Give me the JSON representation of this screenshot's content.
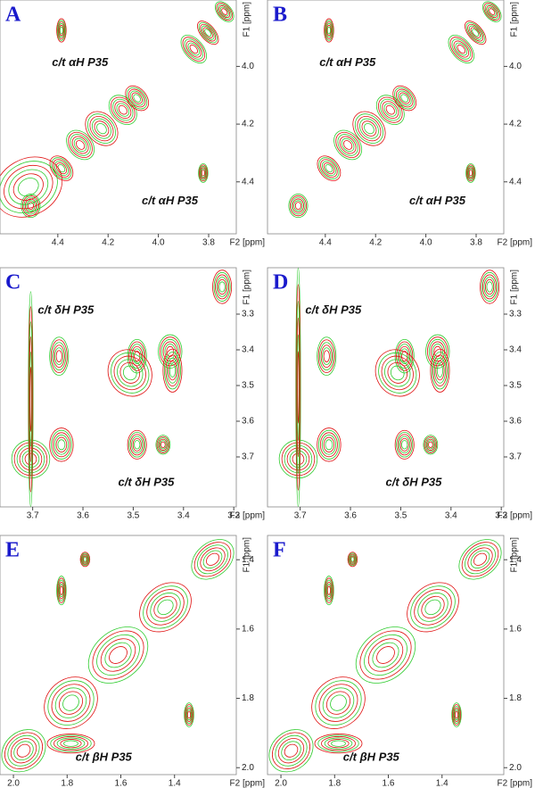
{
  "chart_data": [
    {
      "type": "contour",
      "panel_label": "A",
      "annotations": [
        "c/t αH P35",
        "c/t αH P35"
      ],
      "xlabel": "F2 [ppm]",
      "ylabel": "F1 [ppm]",
      "xlim": [
        4.63,
        3.69
      ],
      "ylim": [
        3.77,
        4.58
      ],
      "xticks": [
        4.4,
        4.2,
        {
          "value": 4,
          "label": "4.0"
        },
        3.8
      ],
      "yticks": [
        {
          "value": 4,
          "label": "4.0"
        },
        4.2,
        4.4
      ],
      "contour_colors": [
        "#2ecc2e",
        "#e01010"
      ]
    },
    {
      "type": "contour",
      "panel_label": "B",
      "annotations": [
        "c/t αH P35",
        "c/t αH P35"
      ],
      "xlabel": "F2 [ppm]",
      "ylabel": "F1 [ppm]",
      "xlim": [
        4.63,
        3.69
      ],
      "ylim": [
        3.77,
        4.58
      ],
      "xticks": [
        4.4,
        4.2,
        {
          "value": 4,
          "label": "4.0"
        },
        3.8
      ],
      "yticks": [
        {
          "value": 4,
          "label": "4.0"
        },
        4.2,
        4.4
      ],
      "contour_colors": [
        "#2ecc2e",
        "#e01010"
      ]
    },
    {
      "type": "contour",
      "panel_label": "C",
      "annotations": [
        "c/t δH P35",
        "c/t δH P35"
      ],
      "xlabel": "F2 [ppm]",
      "ylabel": "F1 [ppm]",
      "xlim": [
        3.765,
        3.295
      ],
      "ylim": [
        3.17,
        3.84
      ],
      "xticks": [
        3.7,
        3.6,
        3.5,
        3.4,
        3.3
      ],
      "yticks": [
        3.3,
        3.4,
        3.5,
        3.6,
        3.7
      ],
      "contour_colors": [
        "#2ecc2e",
        "#e01010"
      ]
    },
    {
      "type": "contour",
      "panel_label": "D",
      "annotations": [
        "c/t δH P35",
        "c/t δH P35"
      ],
      "xlabel": "F2 [ppm]",
      "ylabel": "F1 [ppm]",
      "xlim": [
        3.765,
        3.295
      ],
      "ylim": [
        3.17,
        3.84
      ],
      "xticks": [
        3.7,
        3.6,
        3.5,
        3.4,
        3.3
      ],
      "yticks": [
        3.3,
        3.4,
        3.5,
        3.6,
        3.7
      ],
      "contour_colors": [
        "#2ecc2e",
        "#e01010"
      ]
    },
    {
      "type": "contour",
      "panel_label": "E",
      "annotations": [
        "c/t βH P35"
      ],
      "xlabel": "F2 [ppm]",
      "ylabel": "F1 [ppm]",
      "xlim": [
        2.05,
        1.17
      ],
      "ylim": [
        1.33,
        2.02
      ],
      "xticks": [
        {
          "value": 2,
          "label": "2.0"
        },
        1.8,
        1.6,
        1.4
      ],
      "yticks": [
        1.4,
        1.6,
        1.8,
        {
          "value": 2,
          "label": "2.0"
        }
      ],
      "contour_colors": [
        "#2ecc2e",
        "#e01010"
      ]
    },
    {
      "type": "contour",
      "panel_label": "F",
      "annotations": [
        "c/t βH P35"
      ],
      "xlabel": "F2 [ppm]",
      "ylabel": "F1 [ppm]",
      "xlim": [
        2.05,
        1.17
      ],
      "ylim": [
        1.33,
        2.02
      ],
      "xticks": [
        {
          "value": 2,
          "label": "2.0"
        },
        1.8,
        1.6,
        1.4
      ],
      "yticks": [
        1.4,
        1.6,
        1.8,
        {
          "value": 2,
          "label": "2.0"
        }
      ],
      "contour_colors": [
        "#2ecc2e",
        "#e01010"
      ]
    }
  ]
}
